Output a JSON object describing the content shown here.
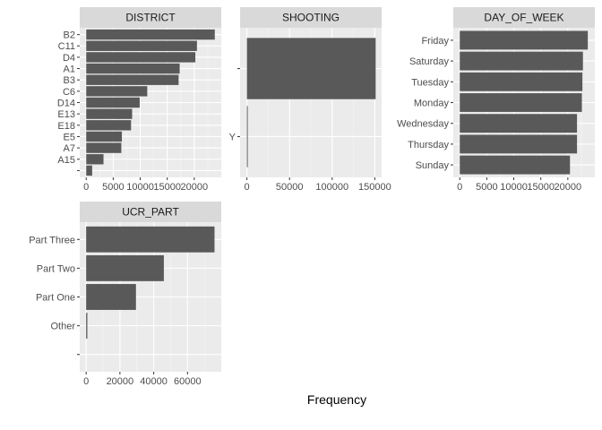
{
  "xlabel": "Frequency",
  "colors": {
    "bar": "#595959",
    "panel": "#ebebeb",
    "strip": "#d9d9d9",
    "grid_major": "#ffffff"
  },
  "chart_data": [
    {
      "type": "bar",
      "orientation": "horizontal",
      "title": "DISTRICT",
      "categories": [
        "B2",
        "C11",
        "D4",
        "A1",
        "B3",
        "C6",
        "D14",
        "E13",
        "E18",
        "E5",
        "A7",
        "A15",
        ""
      ],
      "values": [
        23800,
        20500,
        20200,
        17300,
        17100,
        11300,
        9900,
        8500,
        8300,
        6600,
        6500,
        3200,
        1100
      ],
      "xlim": [
        -1200,
        25000
      ],
      "xticks": [
        0,
        5000,
        10000,
        15000,
        20000
      ],
      "xtick_labels": [
        "0",
        "5000",
        "10000",
        "15000",
        "20000"
      ]
    },
    {
      "type": "bar",
      "orientation": "horizontal",
      "title": "SHOOTING",
      "categories": [
        "",
        "Y"
      ],
      "values": [
        151000,
        1000
      ],
      "xlim": [
        -8000,
        158000
      ],
      "xticks": [
        0,
        50000,
        100000,
        150000
      ],
      "xtick_labels": [
        "0",
        "50000",
        "100000",
        "150000"
      ]
    },
    {
      "type": "bar",
      "orientation": "horizontal",
      "title": "DAY_OF_WEEK",
      "categories": [
        "Friday",
        "Saturday",
        "Tuesday",
        "Monday",
        "Wednesday",
        "Thursday",
        "Sunday"
      ],
      "values": [
        23700,
        22800,
        22700,
        22600,
        21700,
        21700,
        20400
      ],
      "xlim": [
        -1200,
        25000
      ],
      "xticks": [
        0,
        5000,
        10000,
        15000,
        20000
      ],
      "xtick_labels": [
        "0",
        "5000",
        "10000",
        "15000",
        "20000"
      ]
    },
    {
      "type": "bar",
      "orientation": "horizontal",
      "title": "UCR_PART",
      "categories": [
        "Part Three",
        "Part Two",
        "Part One",
        "Other",
        ""
      ],
      "values": [
        76000,
        46000,
        29500,
        700,
        0
      ],
      "xlim": [
        -3800,
        80000
      ],
      "xticks": [
        0,
        20000,
        40000,
        60000
      ],
      "xtick_labels": [
        "0",
        "20000",
        "40000",
        "60000"
      ]
    }
  ]
}
